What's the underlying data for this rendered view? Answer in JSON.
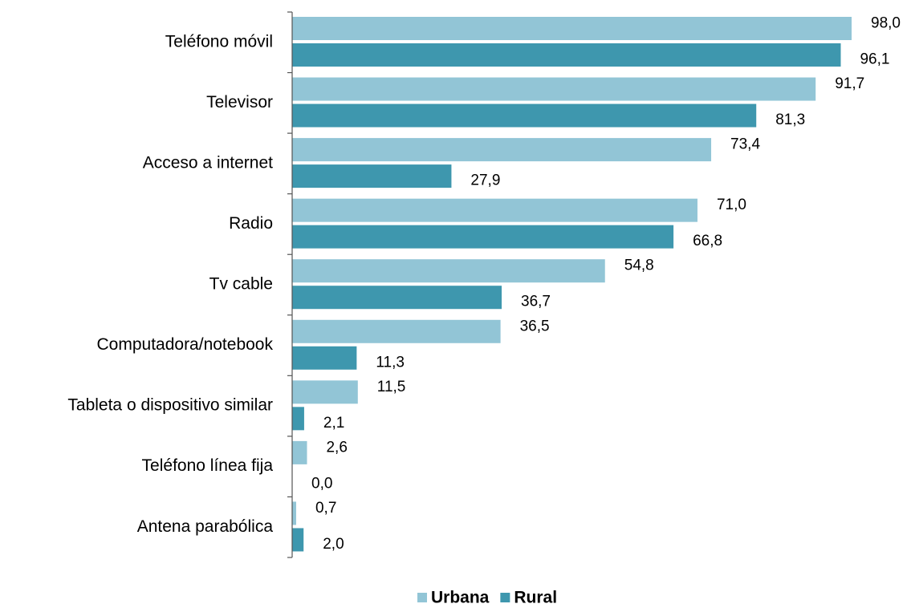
{
  "chart_data": {
    "type": "bar",
    "orientation": "horizontal",
    "categories": [
      "Teléfono móvil",
      "Televisor",
      "Acceso a internet",
      "Radio",
      "Tv cable",
      "Computadora/notebook",
      "Tableta o dispositivo similar",
      "Teléfono línea fija",
      "Antena parabólica"
    ],
    "series": [
      {
        "name": "Urbana",
        "color": "#92c5d6",
        "values": [
          98.0,
          91.7,
          73.4,
          71.0,
          54.8,
          36.5,
          11.5,
          2.6,
          0.7
        ],
        "value_labels": [
          "98,0",
          "91,7",
          "73,4",
          "71,0",
          "54,8",
          "36,5",
          "11,5",
          "2,6",
          "0,7"
        ]
      },
      {
        "name": "Rural",
        "color": "#3e97ae",
        "values": [
          96.1,
          81.3,
          27.9,
          66.8,
          36.7,
          11.3,
          2.1,
          0.0,
          2.0
        ],
        "value_labels": [
          "96,1",
          "81,3",
          "27,9",
          "66,8",
          "36,7",
          "11,3",
          "2,1",
          "0,0",
          "2,0"
        ]
      }
    ],
    "legend": "bottom"
  }
}
